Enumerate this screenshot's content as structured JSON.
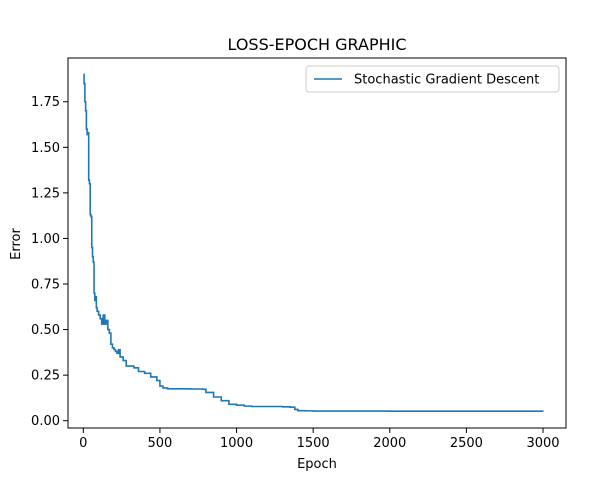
{
  "chart_data": {
    "type": "line",
    "title": "LOSS-EPOCH GRAPHIC",
    "xlabel": "Epoch",
    "ylabel": "Error",
    "xlim": [
      -100,
      3150
    ],
    "ylim": [
      -0.04,
      1.99
    ],
    "xticks": [
      0,
      500,
      1000,
      1500,
      2000,
      2500,
      3000
    ],
    "xtick_labels": [
      "0",
      "500",
      "1000",
      "1500",
      "2000",
      "2500",
      "3000"
    ],
    "yticks": [
      0.0,
      0.25,
      0.5,
      0.75,
      1.0,
      1.25,
      1.5,
      1.75
    ],
    "ytick_labels": [
      "0.00",
      "0.25",
      "0.50",
      "0.75",
      "1.00",
      "1.25",
      "1.50",
      "1.75"
    ],
    "grid": false,
    "legend_position": "top-right",
    "series": [
      {
        "name": "Stochastic Gradient Descent",
        "color": "#1f77b4",
        "step": true,
        "x": [
          0,
          5,
          10,
          15,
          20,
          25,
          30,
          35,
          40,
          45,
          50,
          55,
          60,
          65,
          70,
          75,
          80,
          85,
          90,
          100,
          110,
          120,
          130,
          140,
          150,
          160,
          170,
          180,
          190,
          200,
          210,
          220,
          230,
          240,
          260,
          280,
          300,
          330,
          360,
          400,
          440,
          480,
          500,
          520,
          550,
          600,
          700,
          780,
          800,
          850,
          900,
          950,
          1000,
          1050,
          1100,
          1200,
          1300,
          1350,
          1380,
          1400,
          1450,
          1500,
          2000,
          2500,
          3000
        ],
        "y": [
          1.9,
          1.85,
          1.75,
          1.7,
          1.6,
          1.57,
          1.58,
          1.32,
          1.3,
          1.13,
          1.12,
          0.95,
          0.9,
          0.87,
          0.7,
          0.66,
          0.68,
          0.62,
          0.6,
          0.58,
          0.56,
          0.53,
          0.58,
          0.53,
          0.55,
          0.5,
          0.48,
          0.42,
          0.4,
          0.39,
          0.38,
          0.37,
          0.39,
          0.35,
          0.33,
          0.3,
          0.3,
          0.29,
          0.27,
          0.26,
          0.24,
          0.22,
          0.19,
          0.18,
          0.175,
          0.175,
          0.174,
          0.172,
          0.155,
          0.13,
          0.11,
          0.09,
          0.085,
          0.08,
          0.078,
          0.078,
          0.076,
          0.074,
          0.062,
          0.055,
          0.054,
          0.053,
          0.052,
          0.052,
          0.051
        ]
      }
    ]
  }
}
